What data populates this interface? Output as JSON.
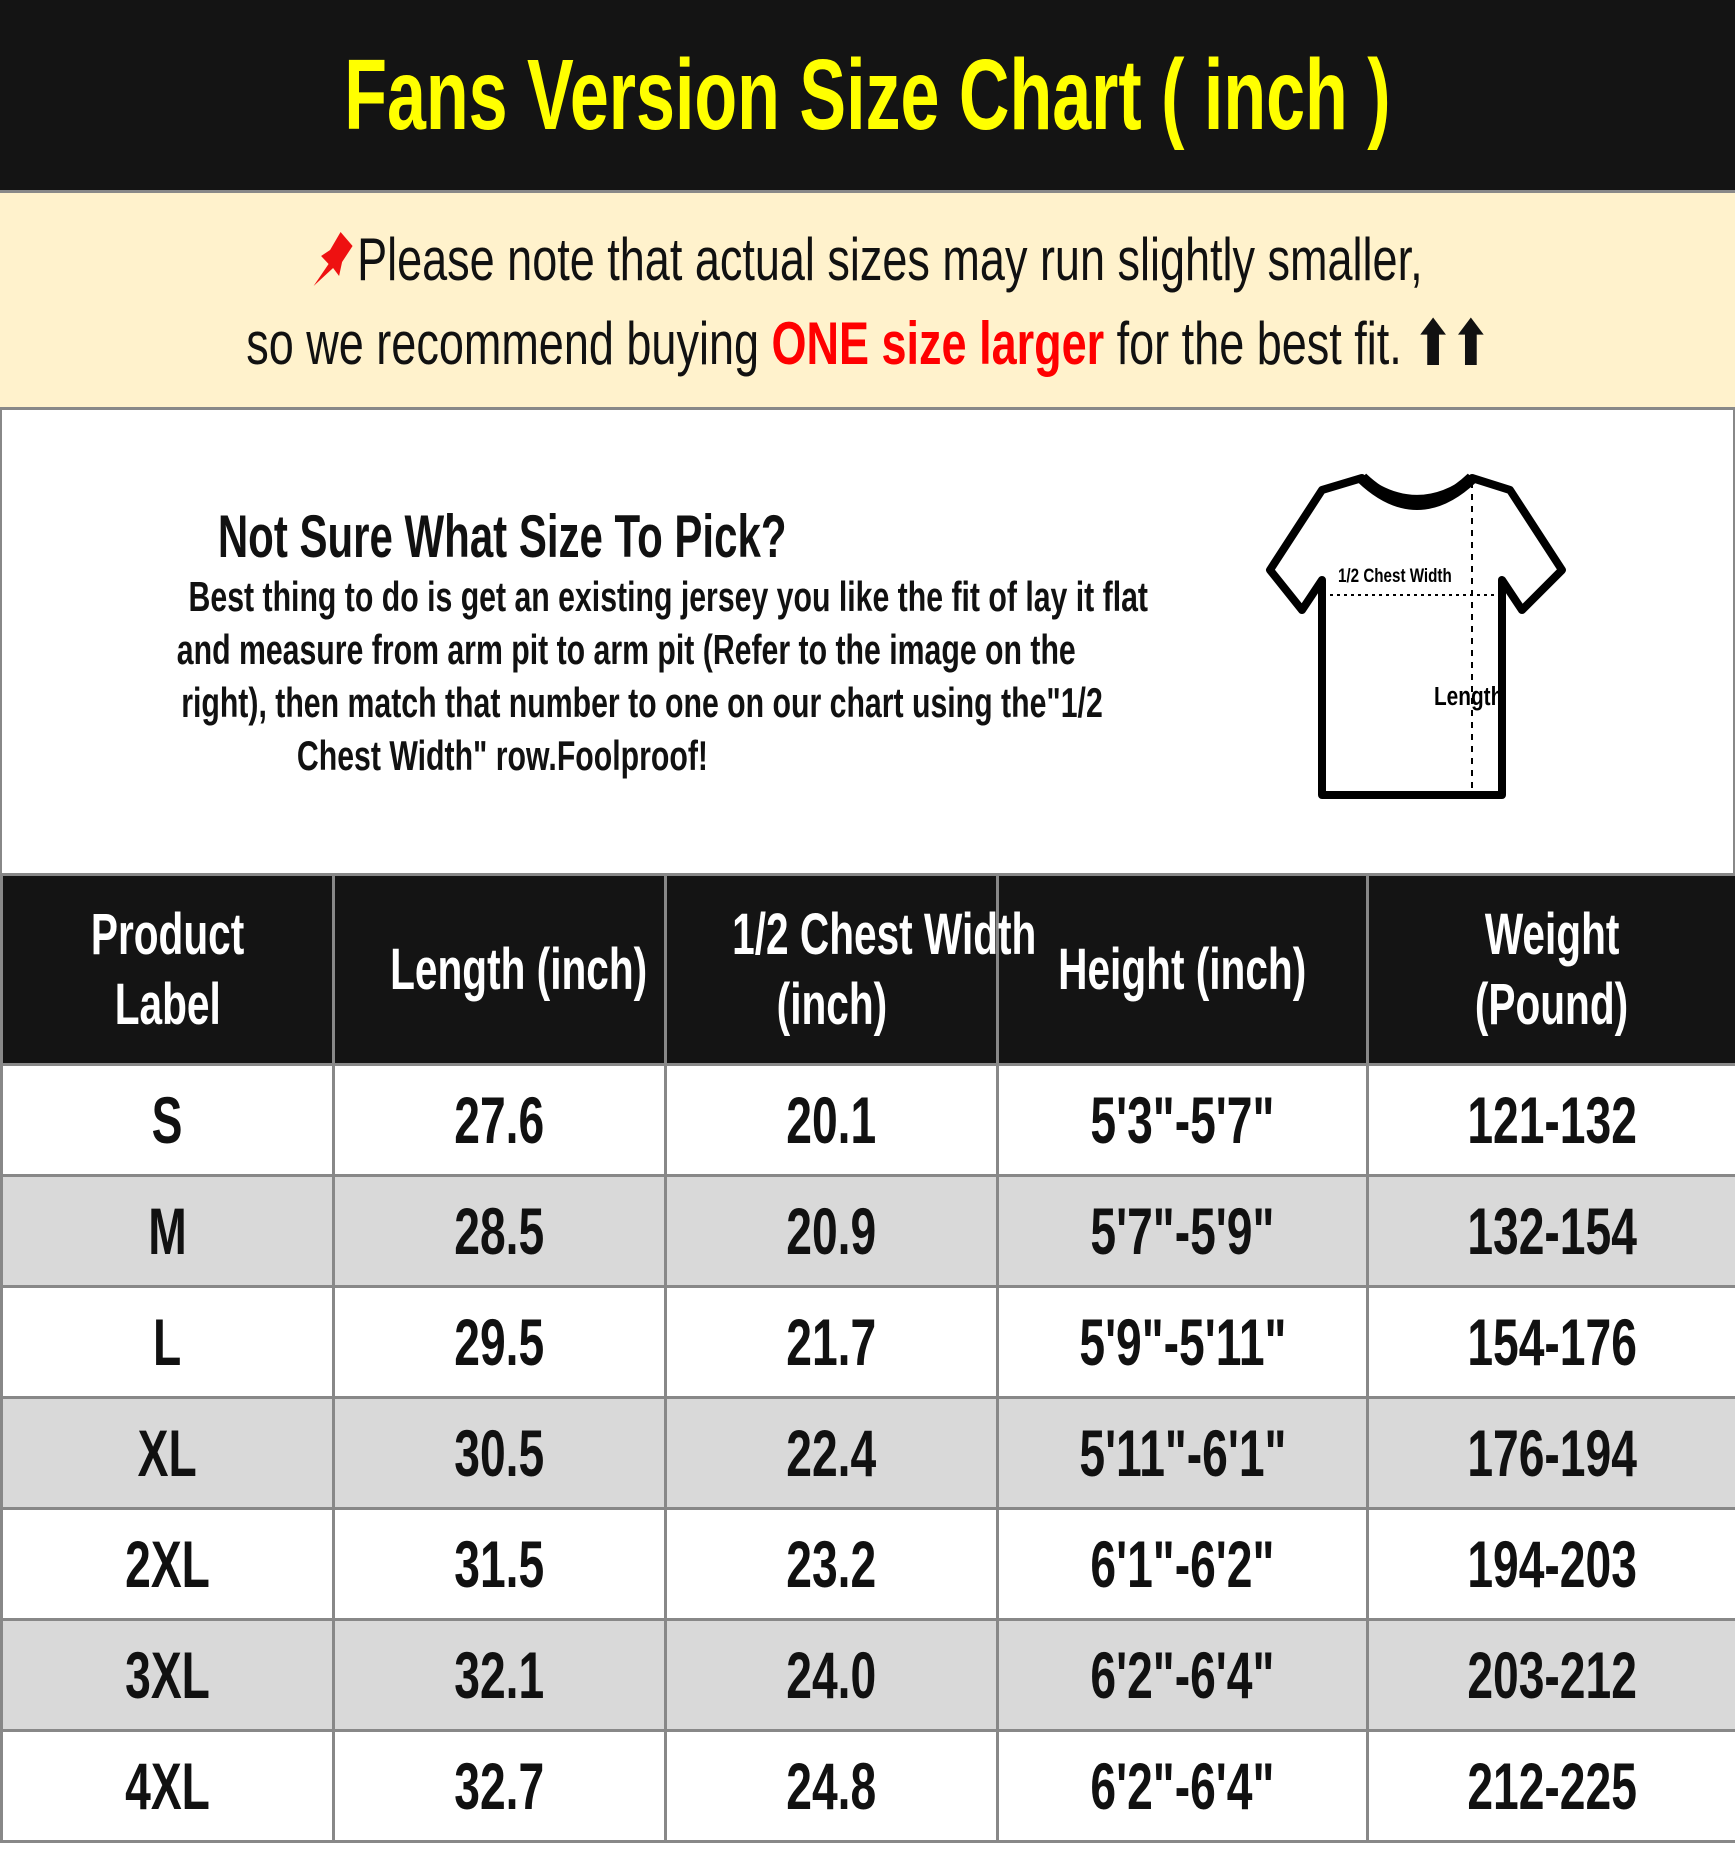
{
  "title": "Fans Version Size Chart ( inch )",
  "notice": {
    "icon": "pushpin-icon",
    "line1": "Please note that actual sizes may run slightly smaller,",
    "line2_pre": "so we recommend buying ",
    "line2_highlight": "ONE size larger",
    "line2_post": " for the best fit. ",
    "arrows": "⬆⬆",
    "highlight_color": "#ff0000"
  },
  "info": {
    "heading": "Not Sure What Size To Pick?",
    "lines": [
      "Best thing to do is get an existing jersey you like the fit of lay it flat",
      "and measure from arm pit to arm pit (Refer to the image on the",
      "right), then match that number to one on our chart using the\"1/2",
      "Chest Width\" row.Foolproof!"
    ],
    "diagram": {
      "chest_label": "1/2 Chest Width",
      "length_label": "Length"
    }
  },
  "table": {
    "headers": [
      [
        "Product",
        "Label"
      ],
      [
        "Length (inch)"
      ],
      [
        "1/2 Chest Width",
        "(inch)"
      ],
      [
        "Height (inch)"
      ],
      [
        "Weight",
        "(Pound)"
      ]
    ],
    "rows": [
      [
        "S",
        "27.6",
        "20.1",
        "5'3\"-5'7\"",
        "121-132"
      ],
      [
        "M",
        "28.5",
        "20.9",
        "5'7\"-5'9\"",
        "132-154"
      ],
      [
        "L",
        "29.5",
        "21.7",
        "5'9\"-5'11\"",
        "154-176"
      ],
      [
        "XL",
        "30.5",
        "22.4",
        "5'11\"-6'1\"",
        "176-194"
      ],
      [
        "2XL",
        "31.5",
        "23.2",
        "6'1\"-6'2\"",
        "194-203"
      ],
      [
        "3XL",
        "32.1",
        "24.0",
        "6'2\"-6'4\"",
        "203-212"
      ],
      [
        "4XL",
        "32.7",
        "24.8",
        "6'2\"-6'4\"",
        "212-225"
      ]
    ]
  },
  "colors": {
    "title_bg": "#141414",
    "title_text": "#ffff00",
    "notice_bg": "#fff2cc",
    "alt_row": "#d9d9d9"
  }
}
